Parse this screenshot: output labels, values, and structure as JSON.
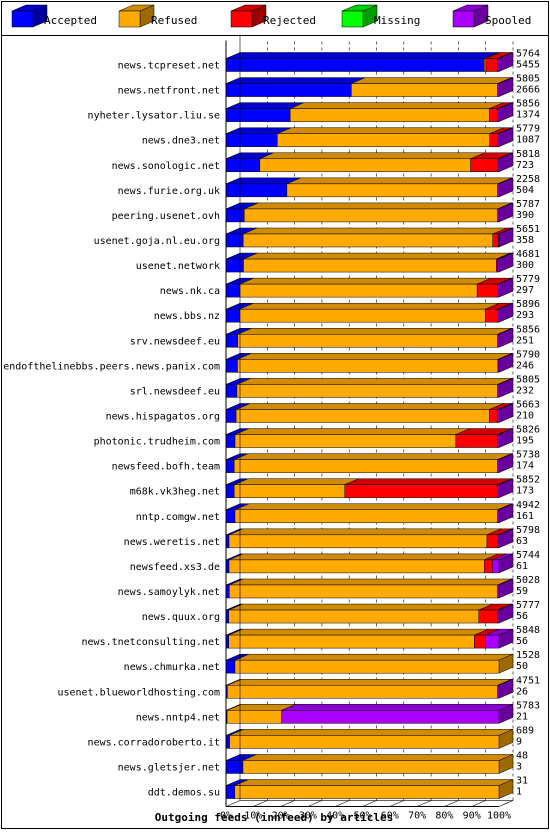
{
  "chart_data": {
    "type": "bar",
    "orientation": "horizontal",
    "stacked": true,
    "percent_stacked": true,
    "title": "Outgoing feeds (innfeed) by articles",
    "xlim": [
      0,
      100
    ],
    "x_ticks": [
      "0%",
      "10%",
      "20%",
      "30%",
      "40%",
      "50%",
      "60%",
      "70%",
      "80%",
      "90%",
      "100%"
    ],
    "grid": "vertical-dashed",
    "legend_position": "top",
    "series": [
      {
        "name": "Accepted",
        "color": "#0000ff"
      },
      {
        "name": "Refused",
        "color": "#ffaa00"
      },
      {
        "name": "Rejected",
        "color": "#ff0000"
      },
      {
        "name": "Missing",
        "color": "#00ff00"
      },
      {
        "name": "Spooled",
        "color": "#aa00ff"
      }
    ],
    "rows": [
      {
        "label": "news.tcpreset.net",
        "total": "5764",
        "accepted": "5455",
        "pct": [
          94.6,
          0.6,
          4.3,
          0,
          0.5
        ]
      },
      {
        "label": "news.netfront.net",
        "total": "5805",
        "accepted": "2666",
        "pct": [
          45.9,
          53.6,
          0,
          0,
          0.5
        ]
      },
      {
        "label": "nyheter.lysator.liu.se",
        "total": "5856",
        "accepted": "1374",
        "pct": [
          23.5,
          73.0,
          3.0,
          0,
          0.5
        ]
      },
      {
        "label": "news.dne3.net",
        "total": "5779",
        "accepted": "1087",
        "pct": [
          18.8,
          77.8,
          2.9,
          0,
          0.5
        ]
      },
      {
        "label": "news.sonologic.net",
        "total": "5818",
        "accepted": "723",
        "pct": [
          12.4,
          77.2,
          10.0,
          0,
          0.4
        ]
      },
      {
        "label": "news.furie.org.uk",
        "total": "2258",
        "accepted": "504",
        "pct": [
          22.3,
          77.2,
          0,
          0,
          0.5
        ]
      },
      {
        "label": "peering.usenet.ovh",
        "total": "5787",
        "accepted": "390",
        "pct": [
          6.7,
          92.8,
          0,
          0,
          0.5
        ]
      },
      {
        "label": "usenet.goja.nl.eu.org",
        "total": "5651",
        "accepted": "358",
        "pct": [
          6.3,
          91.4,
          2.0,
          0,
          0.3
        ]
      },
      {
        "label": "usenet.network",
        "total": "4681",
        "accepted": "300",
        "pct": [
          6.4,
          92.6,
          0.5,
          0,
          0.5
        ]
      },
      {
        "label": "news.nk.ca",
        "total": "5779",
        "accepted": "297",
        "pct": [
          5.1,
          86.9,
          7.5,
          0,
          0.5
        ]
      },
      {
        "label": "news.bbs.nz",
        "total": "5896",
        "accepted": "293",
        "pct": [
          5.0,
          90.0,
          4.5,
          0,
          0.5
        ]
      },
      {
        "label": "srv.newsdeef.eu",
        "total": "5856",
        "accepted": "251",
        "pct": [
          4.3,
          95.2,
          0,
          0,
          0.5
        ]
      },
      {
        "label": "endofthelinebbs.peers.news.panix.com",
        "total": "5790",
        "accepted": "246",
        "pct": [
          4.2,
          95.4,
          0,
          0,
          0.4
        ]
      },
      {
        "label": "srl.newsdeef.eu",
        "total": "5805",
        "accepted": "232",
        "pct": [
          4.0,
          95.5,
          0,
          0,
          0.5
        ]
      },
      {
        "label": "news.hispagatos.org",
        "total": "5663",
        "accepted": "210",
        "pct": [
          3.7,
          92.8,
          3.0,
          0,
          0.5
        ]
      },
      {
        "label": "photonic.trudheim.com",
        "total": "5826",
        "accepted": "195",
        "pct": [
          3.3,
          80.9,
          15.3,
          0,
          0.5
        ]
      },
      {
        "label": "newsfeed.bofh.team",
        "total": "5738",
        "accepted": "174",
        "pct": [
          3.0,
          96.5,
          0,
          0,
          0.5
        ]
      },
      {
        "label": "m68k.vk3heg.net",
        "total": "5852",
        "accepted": "173",
        "pct": [
          3.0,
          40.5,
          56.0,
          0,
          0.5
        ]
      },
      {
        "label": "nntp.comgw.net",
        "total": "4942",
        "accepted": "161",
        "pct": [
          3.3,
          96.2,
          0,
          0,
          0.5
        ]
      },
      {
        "label": "news.weretis.net",
        "total": "5798",
        "accepted": "63",
        "pct": [
          1.1,
          94.5,
          4.0,
          0,
          0.4
        ]
      },
      {
        "label": "newsfeed.xs3.de",
        "total": "5744",
        "accepted": "61",
        "pct": [
          1.1,
          93.5,
          3.0,
          0,
          2.4
        ]
      },
      {
        "label": "news.samoylyk.net",
        "total": "5028",
        "accepted": "59",
        "pct": [
          1.2,
          98.3,
          0,
          0,
          0.5
        ]
      },
      {
        "label": "news.quux.org",
        "total": "5777",
        "accepted": "56",
        "pct": [
          1.0,
          91.6,
          7.0,
          0,
          0.4
        ]
      },
      {
        "label": "news.tnetconsulting.net",
        "total": "5848",
        "accepted": "56",
        "pct": [
          1.0,
          90.0,
          4.0,
          0,
          5.0
        ]
      },
      {
        "label": "news.chmurka.net",
        "total": "1528",
        "accepted": "50",
        "pct": [
          3.3,
          96.7,
          0,
          0,
          0
        ]
      },
      {
        "label": "usenet.blueworldhosting.com",
        "total": "4751",
        "accepted": "26",
        "pct": [
          0.5,
          99.0,
          0,
          0,
          0.5
        ]
      },
      {
        "label": "news.nntp4.net",
        "total": "5783",
        "accepted": "21",
        "pct": [
          0.4,
          20.0,
          0,
          0,
          79.6
        ]
      },
      {
        "label": "news.corradoroberto.it",
        "total": "689",
        "accepted": "9",
        "pct": [
          1.3,
          98.7,
          0,
          0,
          0
        ]
      },
      {
        "label": "news.gletsjer.net",
        "total": "48",
        "accepted": "3",
        "pct": [
          6.2,
          93.8,
          0,
          0,
          0
        ]
      },
      {
        "label": "ddt.demos.su",
        "total": "31",
        "accepted": "1",
        "pct": [
          3.2,
          96.8,
          0,
          0,
          0
        ]
      }
    ]
  }
}
